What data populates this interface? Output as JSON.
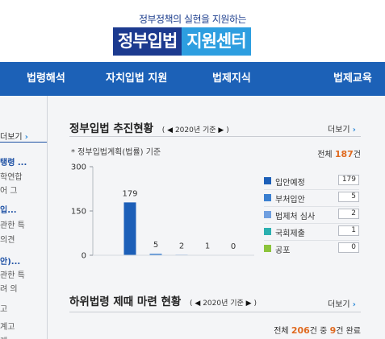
{
  "header": {
    "tagline": "정부정책의 실현을 지원하는",
    "logo_part1": "정부입법",
    "logo_part2": "지원센터"
  },
  "nav": [
    "법령해석",
    "자치입법 지원",
    "법제지식",
    "법제교육"
  ],
  "left_column": {
    "more": "더보기",
    "items": [
      "탱령 ...",
      "학연합",
      "어 그",
      "입...",
      "관한 특",
      "의견",
      "안)...",
      "관한 특",
      "려 의",
      "고",
      "계고",
      "계"
    ]
  },
  "section1": {
    "title": "정부입법 추진현황",
    "base_year": "2020년 기준",
    "more": "더보기",
    "note": "* 정부입법계획(법률) 기준",
    "total_prefix": "전체",
    "total_value": "187",
    "total_suffix": "건",
    "chart_data": {
      "type": "bar",
      "categories": [
        "입안예정",
        "부처입안",
        "법제처 심사",
        "국회제출",
        "공포"
      ],
      "values": [
        179,
        5,
        2,
        1,
        0
      ],
      "colors": [
        "#1c5fb8",
        "#3a7fd0",
        "#6f9fe0",
        "#2bb0b0",
        "#8cc43c"
      ],
      "ylim": [
        0,
        300
      ],
      "yticks": [
        "0",
        "150",
        "300"
      ]
    }
  },
  "section2": {
    "title": "하위법령 제때 마련 현황",
    "base_year": "2020년 기준",
    "more": "더보기",
    "total_prefix": "전체",
    "total_value": "206",
    "total_mid": "건 중",
    "done_value": "9",
    "total_suffix": "건 완료"
  }
}
